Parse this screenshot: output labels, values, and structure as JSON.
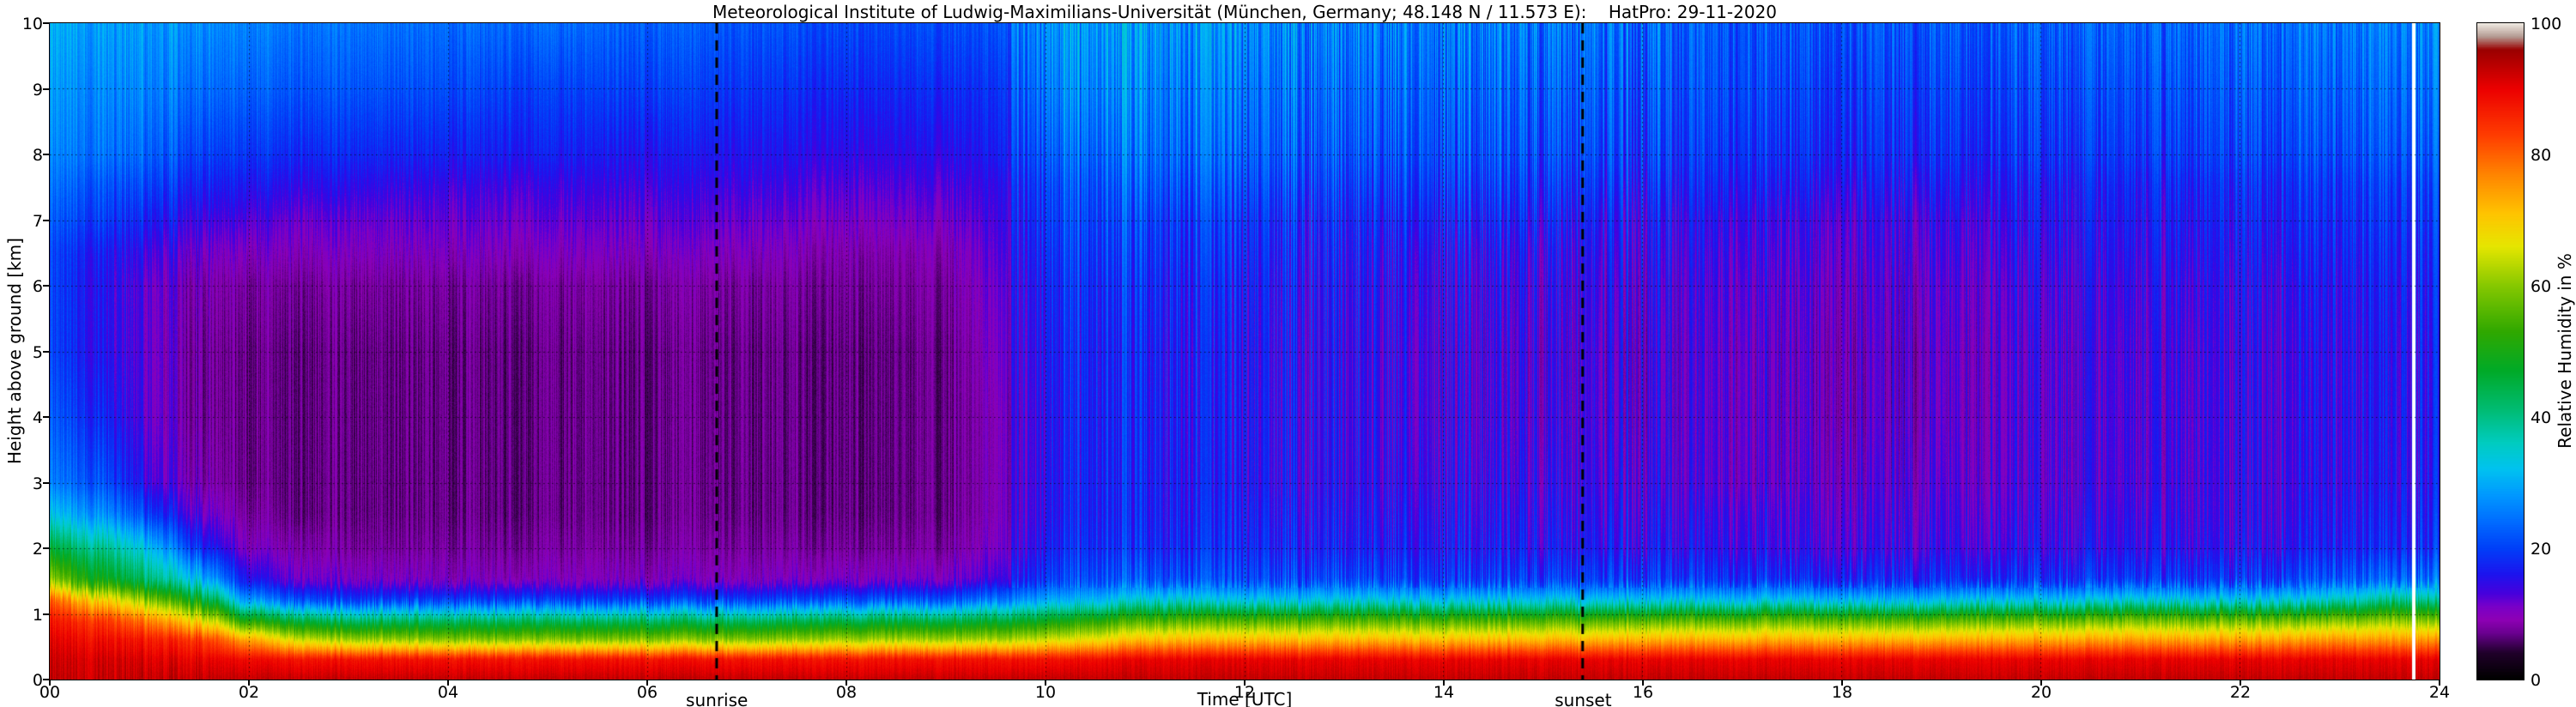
{
  "title": "Meteorological Institute of Ludwig-Maximilians-Universität (München, Germany; 48.148 N / 11.573 E):    HatPro: 29-11-2020",
  "axes": {
    "x_label": "Time [UTC]",
    "y_label": "Height above ground [km]",
    "x_range": [
      0,
      24
    ],
    "y_range": [
      0,
      10
    ],
    "x_ticks": [
      {
        "label": "00",
        "value": 0
      },
      {
        "label": "02",
        "value": 2
      },
      {
        "label": "04",
        "value": 4
      },
      {
        "label": "06",
        "value": 6
      },
      {
        "label": "08",
        "value": 8
      },
      {
        "label": "10",
        "value": 10
      },
      {
        "label": "12",
        "value": 12
      },
      {
        "label": "14",
        "value": 14
      },
      {
        "label": "16",
        "value": 16
      },
      {
        "label": "18",
        "value": 18
      },
      {
        "label": "20",
        "value": 20
      },
      {
        "label": "22",
        "value": 22
      },
      {
        "label": "24",
        "value": 24
      }
    ],
    "y_ticks": [
      {
        "label": "0",
        "value": 0
      },
      {
        "label": "1",
        "value": 1
      },
      {
        "label": "2",
        "value": 2
      },
      {
        "label": "3",
        "value": 3
      },
      {
        "label": "4",
        "value": 4
      },
      {
        "label": "5",
        "value": 5
      },
      {
        "label": "6",
        "value": 6
      },
      {
        "label": "7",
        "value": 7
      },
      {
        "label": "8",
        "value": 8
      },
      {
        "label": "9",
        "value": 9
      },
      {
        "label": "10",
        "value": 10
      }
    ]
  },
  "annotations": {
    "sunrise": {
      "label": "sunrise",
      "time": 6.7
    },
    "sunset": {
      "label": "sunset",
      "time": 15.4
    }
  },
  "colorbar": {
    "label": "Relative Humidity in %",
    "ticks": [
      {
        "label": "0",
        "value": 0
      },
      {
        "label": "20",
        "value": 20
      },
      {
        "label": "40",
        "value": 40
      },
      {
        "label": "60",
        "value": 60
      },
      {
        "label": "80",
        "value": 80
      },
      {
        "label": "100",
        "value": 100
      }
    ]
  },
  "chart_data": {
    "type": "heatmap",
    "title": "Meteorological Institute of Ludwig-Maximilians-Universität (München, Germany; 48.148 N / 11.573 E):    HatPro: 29-11-2020",
    "xlabel": "Time [UTC]",
    "ylabel": "Height above ground [km]",
    "value_label": "Relative Humidity in %",
    "x_range": [
      0,
      24
    ],
    "y_range": [
      0,
      10
    ],
    "value_range": [
      0,
      100
    ],
    "grid": "dotted, every 2 h and every 1 km",
    "legend_position": "right colorbar",
    "sunrise_time_utc": 6.7,
    "sunset_time_utc": 15.4,
    "missing_data_times": [
      23.75
    ],
    "orientation": "columns_rh_percent[j] is the relative-humidity profile (%) at times[j], listed from heights[0]=ground up to heights[17]=10 km",
    "heights": [
      0,
      0.3,
      0.6,
      0.9,
      1.2,
      1.5,
      2,
      2.5,
      3,
      4,
      5,
      6,
      6.5,
      7,
      7.5,
      8,
      9,
      10
    ],
    "times": [
      0,
      0.5,
      1,
      1.5,
      2,
      2.5,
      3,
      4,
      5,
      6,
      7,
      8,
      9,
      9.5,
      10,
      10.5,
      11,
      12,
      13,
      14,
      15,
      16,
      17,
      18,
      19,
      20,
      21,
      22,
      23,
      23.5,
      24
    ],
    "columns_rh_percent": [
      [
        93,
        92,
        90,
        87,
        80,
        60,
        45,
        32,
        25,
        22,
        20,
        20,
        20,
        22,
        24,
        26,
        28,
        30
      ],
      [
        93,
        92,
        89,
        84,
        70,
        50,
        40,
        28,
        22,
        18,
        16,
        16,
        17,
        20,
        22,
        25,
        27,
        29
      ],
      [
        93,
        91,
        87,
        77,
        60,
        42,
        32,
        20,
        14,
        12,
        12,
        12,
        14,
        17,
        20,
        23,
        26,
        28
      ],
      [
        93,
        90,
        84,
        67,
        48,
        32,
        18,
        12,
        9,
        8,
        8,
        9,
        11,
        14,
        17,
        20,
        24,
        27
      ],
      [
        93,
        89,
        74,
        50,
        28,
        16,
        10,
        8,
        7,
        7,
        7,
        8,
        10,
        13,
        16,
        19,
        23,
        26
      ],
      [
        93,
        88,
        65,
        45,
        22,
        12,
        9,
        7,
        7,
        7,
        7,
        8,
        10,
        12,
        15,
        18,
        22,
        25
      ],
      [
        93,
        88,
        62,
        42,
        20,
        11,
        8,
        7,
        7,
        7,
        7,
        8,
        10,
        12,
        15,
        18,
        22,
        25
      ],
      [
        93,
        88,
        60,
        42,
        20,
        10,
        8,
        7,
        7,
        7,
        7,
        8,
        10,
        12,
        14,
        17,
        21,
        24
      ],
      [
        93,
        88,
        60,
        42,
        20,
        10,
        8,
        7,
        7,
        7,
        7,
        8,
        10,
        12,
        14,
        17,
        20,
        24
      ],
      [
        93,
        88,
        60,
        42,
        20,
        10,
        8,
        7,
        7,
        7,
        7,
        8,
        10,
        12,
        14,
        16,
        20,
        23
      ],
      [
        93,
        88,
        60,
        42,
        20,
        10,
        8,
        7,
        7,
        7,
        7,
        8,
        10,
        12,
        14,
        16,
        19,
        22
      ],
      [
        93,
        88,
        62,
        44,
        22,
        11,
        8,
        7,
        7,
        7,
        7,
        8,
        9,
        11,
        13,
        15,
        18,
        21
      ],
      [
        93,
        88,
        62,
        44,
        22,
        11,
        8,
        7,
        7,
        7,
        7,
        8,
        9,
        11,
        13,
        15,
        18,
        21
      ],
      [
        93,
        88,
        62,
        45,
        25,
        14,
        11,
        10,
        10,
        10,
        11,
        12,
        13,
        14,
        15,
        17,
        19,
        22
      ],
      [
        93,
        88,
        65,
        48,
        30,
        20,
        17,
        16,
        16,
        16,
        17,
        18,
        19,
        20,
        21,
        23,
        26,
        28
      ],
      [
        93,
        89,
        68,
        52,
        32,
        22,
        19,
        18,
        18,
        18,
        18,
        19,
        20,
        21,
        22,
        24,
        27,
        29
      ],
      [
        93,
        90,
        72,
        55,
        35,
        22,
        18,
        17,
        17,
        17,
        17,
        18,
        19,
        20,
        22,
        24,
        26,
        28
      ],
      [
        93,
        90,
        72,
        55,
        33,
        21,
        18,
        17,
        16,
        16,
        16,
        17,
        18,
        19,
        21,
        23,
        25,
        27
      ],
      [
        93,
        90,
        72,
        55,
        33,
        21,
        17,
        16,
        15,
        15,
        15,
        16,
        17,
        18,
        20,
        22,
        24,
        26
      ],
      [
        93,
        90,
        72,
        55,
        33,
        20,
        17,
        16,
        15,
        14,
        14,
        15,
        16,
        18,
        20,
        22,
        24,
        26
      ],
      [
        93,
        90,
        72,
        55,
        33,
        20,
        16,
        15,
        14,
        13,
        13,
        14,
        15,
        17,
        19,
        21,
        23,
        25
      ],
      [
        93,
        90,
        73,
        56,
        33,
        20,
        16,
        15,
        14,
        13,
        13,
        14,
        15,
        16,
        18,
        20,
        22,
        24
      ],
      [
        93,
        90,
        73,
        56,
        32,
        19,
        15,
        14,
        12,
        12,
        12,
        13,
        14,
        15,
        17,
        19,
        21,
        22
      ],
      [
        93,
        90,
        73,
        56,
        32,
        18,
        14,
        13,
        12,
        11,
        11,
        12,
        13,
        14,
        16,
        18,
        20,
        22
      ],
      [
        93,
        90,
        73,
        56,
        32,
        18,
        14,
        13,
        12,
        11,
        11,
        12,
        13,
        14,
        16,
        18,
        20,
        22
      ],
      [
        93,
        90,
        74,
        57,
        33,
        19,
        15,
        14,
        13,
        13,
        13,
        14,
        15,
        16,
        17,
        19,
        21,
        23
      ],
      [
        93,
        90,
        74,
        57,
        33,
        19,
        15,
        14,
        13,
        13,
        13,
        14,
        15,
        16,
        17,
        19,
        21,
        23
      ],
      [
        93,
        90,
        74,
        57,
        33,
        19,
        15,
        14,
        14,
        14,
        14,
        15,
        16,
        17,
        18,
        20,
        22,
        24
      ],
      [
        93,
        90,
        75,
        58,
        35,
        22,
        17,
        16,
        15,
        15,
        15,
        16,
        17,
        18,
        19,
        21,
        23,
        25
      ],
      [
        93,
        90,
        75,
        60,
        40,
        24,
        18,
        17,
        16,
        16,
        16,
        17,
        18,
        19,
        20,
        22,
        24,
        26
      ],
      [
        93,
        90,
        75,
        58,
        38,
        24,
        18,
        17,
        16,
        16,
        16,
        17,
        18,
        19,
        20,
        22,
        24,
        26
      ]
    ],
    "colormap_stops": [
      [
        0,
        "#000000"
      ],
      [
        4,
        "#20002a"
      ],
      [
        7,
        "#6a0090"
      ],
      [
        9,
        "#8e00b4"
      ],
      [
        11,
        "#7a00c8"
      ],
      [
        13,
        "#4800dc"
      ],
      [
        16,
        "#1c14ee"
      ],
      [
        20,
        "#0040f8"
      ],
      [
        24,
        "#006cff"
      ],
      [
        28,
        "#0098ff"
      ],
      [
        32,
        "#00c2f0"
      ],
      [
        36,
        "#00ccc0"
      ],
      [
        41,
        "#00bc74"
      ],
      [
        47,
        "#00aa28"
      ],
      [
        53,
        "#30a800"
      ],
      [
        60,
        "#86c800"
      ],
      [
        66,
        "#e6e600"
      ],
      [
        71,
        "#ffc400"
      ],
      [
        77,
        "#ff8400"
      ],
      [
        83,
        "#ff3c00"
      ],
      [
        90,
        "#ec0000"
      ],
      [
        96,
        "#9a0000"
      ],
      [
        98,
        "#b49a92"
      ],
      [
        100,
        "#efe9e1"
      ]
    ]
  }
}
